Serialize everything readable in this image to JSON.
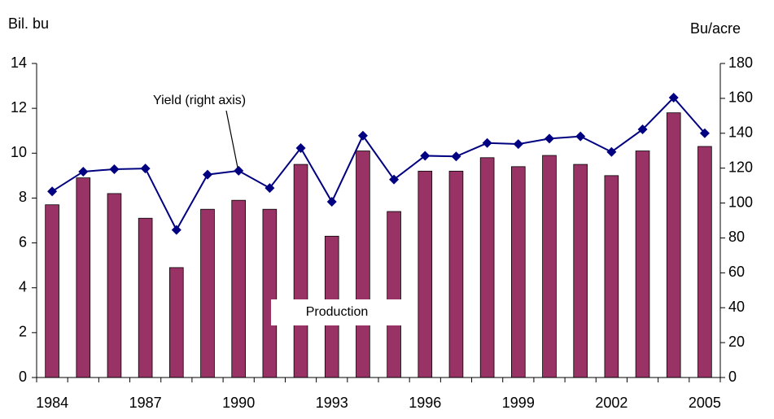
{
  "chart_data": {
    "type": "bar_line",
    "y_label": "Bil. bu",
    "y2_label": "Bu/acre",
    "categories": [
      "1984",
      null,
      null,
      "1987",
      null,
      null,
      "1990",
      null,
      null,
      "1993",
      null,
      null,
      "1996",
      null,
      null,
      "1999",
      null,
      null,
      "2002",
      null,
      null,
      "2005"
    ],
    "series": [
      {
        "name": "Production",
        "type": "bar",
        "color": "#993366",
        "values": [
          7.7,
          8.9,
          8.2,
          7.1,
          4.9,
          7.5,
          7.9,
          7.5,
          9.5,
          6.3,
          10.1,
          7.4,
          9.2,
          9.2,
          9.8,
          9.4,
          9.9,
          9.5,
          9.0,
          10.1,
          11.8,
          10.3
        ]
      },
      {
        "name": "Yield (right axis)",
        "type": "line",
        "axis": "y2",
        "color": "#000080",
        "values": [
          106.7,
          118.0,
          119.4,
          119.8,
          84.6,
          116.3,
          118.5,
          108.6,
          131.5,
          100.7,
          138.6,
          113.5,
          127.1,
          126.7,
          134.4,
          133.8,
          136.9,
          138.2,
          129.3,
          142.2,
          160.4,
          140.0
        ]
      }
    ],
    "ylim": [
      0,
      14
    ],
    "yticks": [
      0,
      2,
      4,
      6,
      8,
      10,
      12,
      14
    ],
    "y2lim": [
      0,
      180
    ],
    "y2ticks": [
      0,
      20,
      40,
      60,
      80,
      100,
      120,
      140,
      160,
      180
    ],
    "grid": false
  }
}
